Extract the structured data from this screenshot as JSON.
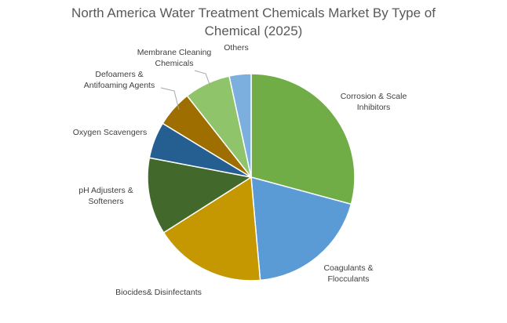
{
  "chart_data": {
    "type": "pie",
    "title_lines": [
      "North America Water Treatment Chemicals Market By Type of",
      "Chemical (2025)"
    ],
    "slices": [
      {
        "label_lines": [
          "Corrosion & Scale",
          "Inhibitors"
        ],
        "value": 29.2,
        "color": "#70ad47"
      },
      {
        "label_lines": [
          "Coagulants &",
          "Flocculants"
        ],
        "value": 19.4,
        "color": "#5b9bd5"
      },
      {
        "label_lines": [
          "Biocides& Disinfectants"
        ],
        "value": 17.4,
        "color": "#c59700"
      },
      {
        "label_lines": [
          "pH Adjusters &",
          "Softeners"
        ],
        "value": 12.0,
        "color": "#43682b"
      },
      {
        "label_lines": [
          "Oxygen Scavengers"
        ],
        "value": 5.7,
        "color": "#255e91"
      },
      {
        "label_lines": [
          "Defoamers &",
          "Antifoaming Agents"
        ],
        "value": 5.7,
        "color": "#9e6f00"
      },
      {
        "label_lines": [
          "Membrane Cleaning",
          "Chemicals"
        ],
        "value": 7.2,
        "color": "#8fc46a"
      },
      {
        "label_lines": [
          "Others"
        ],
        "value": 3.4,
        "color": "#7cafdd"
      }
    ],
    "start_angle_deg": 0,
    "direction": "clockwise",
    "legend": "none"
  }
}
